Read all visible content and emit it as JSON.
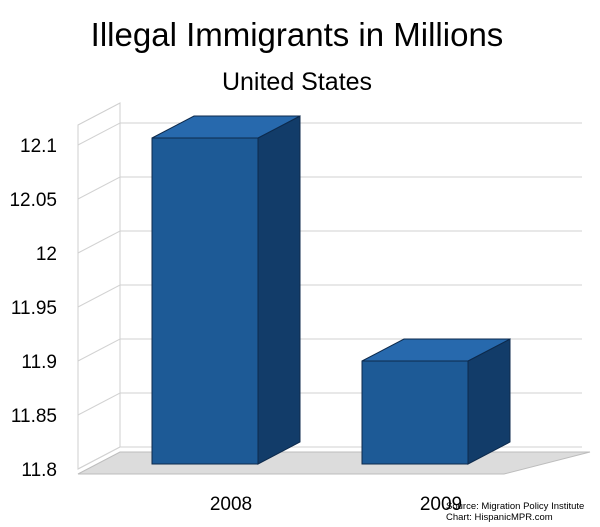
{
  "chart_data": {
    "type": "bar",
    "title": "Illegal Immigrants in Millions",
    "subtitle": "United States",
    "categories": [
      "2008",
      "2009"
    ],
    "values": [
      12.1,
      11.9
    ],
    "ylim": [
      11.8,
      12.1
    ],
    "yticks": [
      "12.1",
      "12.05",
      "12",
      "11.95",
      "11.9",
      "11.85",
      "11.8"
    ],
    "grid": true,
    "three_d": true,
    "colors": {
      "front": "#1d5a96",
      "top": "#2769ad",
      "side": "#123c69",
      "floor": "#dcdcdc"
    }
  },
  "source": {
    "line1": "Source: Migration Policy Institute",
    "line2": "Chart: HispanicMPR.com"
  }
}
